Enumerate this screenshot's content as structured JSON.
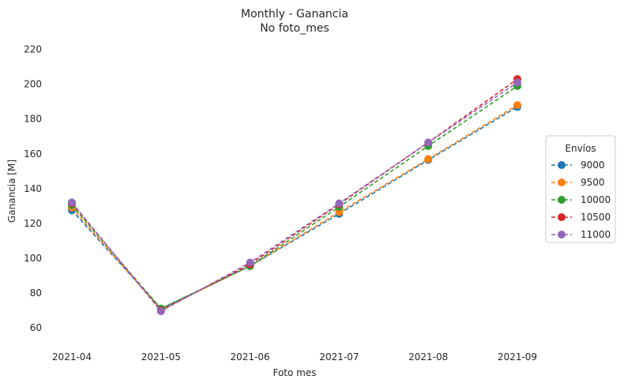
{
  "chart_data": {
    "type": "line",
    "title": "Monthly - Ganancia",
    "subtitle": "No foto_mes",
    "xlabel": "Foto mes",
    "ylabel": "Ganancia [M]",
    "categories": [
      "2021-04",
      "2021-05",
      "2021-06",
      "2021-07",
      "2021-08",
      "2021-09"
    ],
    "y_ticks": [
      60,
      80,
      100,
      120,
      140,
      160,
      180,
      200,
      220
    ],
    "ylim": [
      50,
      228
    ],
    "grid": false,
    "line_style": "dashed",
    "marker": "circle",
    "legend": {
      "title": "Envíos",
      "placement": "right"
    },
    "series": [
      {
        "name": "9000",
        "color": "#1f77b4",
        "values": [
          127.5,
          71.0,
          95.5,
          125.5,
          156.5,
          187.0
        ]
      },
      {
        "name": "9500",
        "color": "#ff7f0e",
        "values": [
          129.0,
          70.5,
          95.5,
          126.5,
          157.0,
          188.0
        ]
      },
      {
        "name": "10000",
        "color": "#2ca02c",
        "values": [
          130.5,
          71.0,
          95.5,
          129.5,
          164.5,
          199.0
        ]
      },
      {
        "name": "10500",
        "color": "#d62728",
        "values": [
          131.5,
          70.0,
          96.5,
          131.0,
          166.5,
          203.0
        ]
      },
      {
        "name": "11000",
        "color": "#9467bd",
        "values": [
          132.0,
          69.5,
          97.5,
          131.5,
          166.5,
          201.0
        ]
      }
    ]
  }
}
